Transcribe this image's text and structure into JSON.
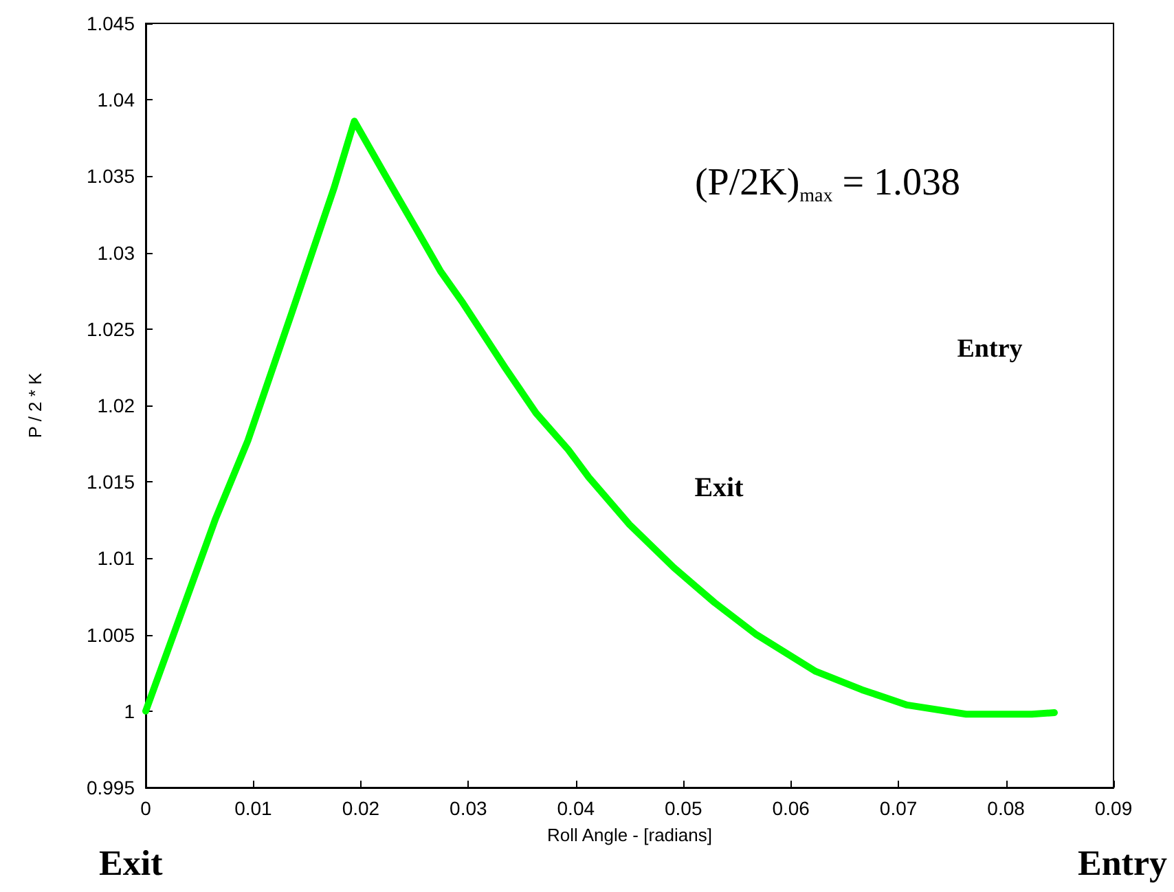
{
  "chart_data": {
    "type": "line",
    "xlabel": "Roll Angle - [radians]",
    "ylabel": "P / 2 * K",
    "x": [
      0,
      0.0065,
      0.0095,
      0.0136,
      0.0175,
      0.0194,
      0.0233,
      0.0252,
      0.0274,
      0.0295,
      0.0334,
      0.0363,
      0.0393,
      0.0412,
      0.045,
      0.0491,
      0.0529,
      0.0568,
      0.0623,
      0.0666,
      0.0708,
      0.0763,
      0.0824,
      0.0845
    ],
    "series": [
      {
        "color": "#00ff00",
        "values": [
          1.0,
          1.0126,
          1.0177,
          1.0261,
          1.0342,
          1.0386,
          1.0338,
          1.0315,
          1.0288,
          1.0267,
          1.0225,
          1.0195,
          1.0171,
          1.0153,
          1.0122,
          1.0094,
          1.0071,
          1.005,
          1.0026,
          1.0014,
          1.0004,
          0.9998,
          0.9998,
          0.9999
        ]
      }
    ],
    "xlim": [
      0,
      0.09
    ],
    "xticks": [
      0,
      0.01,
      0.02,
      0.03,
      0.04,
      0.05,
      0.06,
      0.07,
      0.08,
      0.09
    ],
    "ylim": [
      0.995,
      1.045
    ],
    "yticks": [
      0.995,
      1,
      1.005,
      1.01,
      1.015,
      1.02,
      1.025,
      1.03,
      1.035,
      1.04,
      1.045
    ],
    "grid": false,
    "marker": "none",
    "line_style": "solid",
    "annotations": [
      "(P/2K)$_{max}$ = 1.038",
      "Entry",
      "Exit",
      "Exit",
      "Entry"
    ]
  }
}
